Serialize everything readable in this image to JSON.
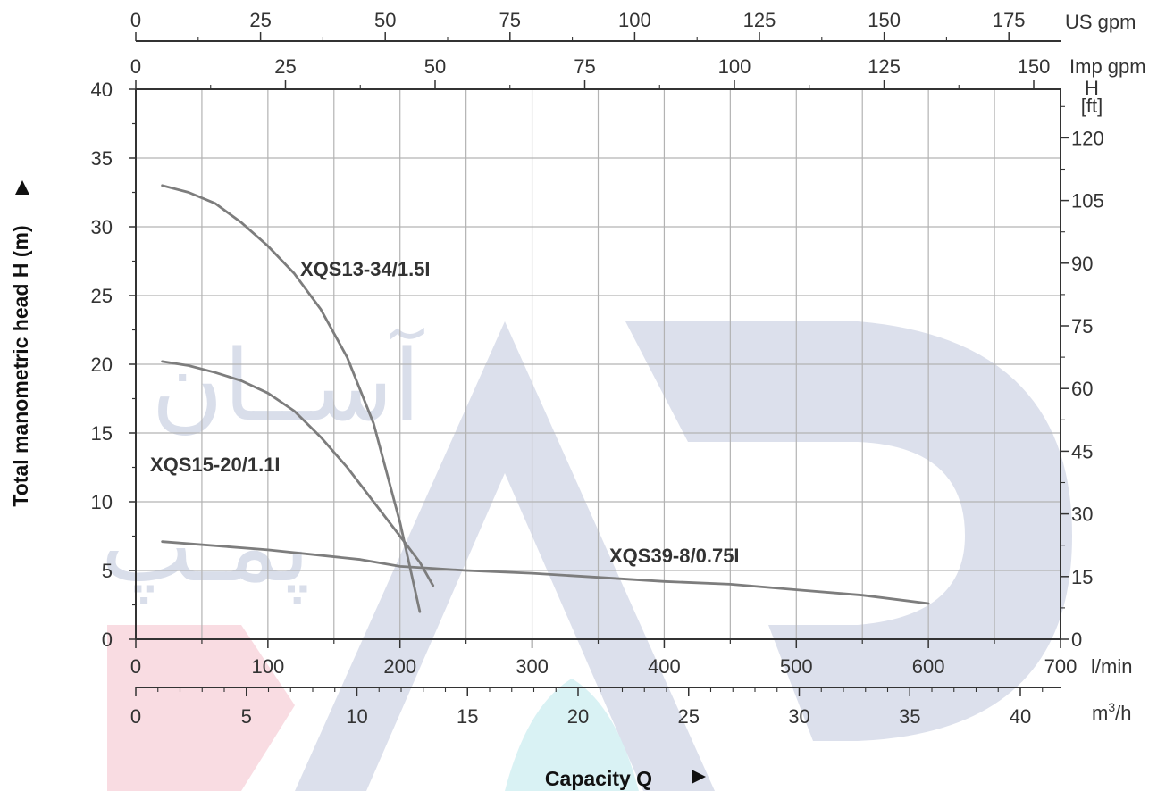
{
  "chart_data": {
    "type": "line",
    "title": "",
    "xlabel": "Capacity Q",
    "ylabel": "Total manometric head H (m)",
    "xlim": [
      0,
      700
    ],
    "ylim": [
      0,
      40
    ],
    "grid": true,
    "x_ticks": [
      "0",
      "100",
      "200",
      "300",
      "400",
      "500",
      "600",
      "700"
    ],
    "x_unit": "l/min",
    "y_ticks": [
      "0",
      "5",
      "10",
      "15",
      "20",
      "25",
      "30",
      "35",
      "40"
    ],
    "secondary_axes": {
      "top_us_gpm": {
        "unit": "US gpm",
        "ticks": [
          "0",
          "25",
          "50",
          "75",
          "100",
          "125",
          "150",
          "175"
        ]
      },
      "top_imp_gpm": {
        "unit": "Imp gpm",
        "ticks": [
          "0",
          "25",
          "50",
          "75",
          "100",
          "125",
          "150"
        ]
      },
      "bottom_m3h": {
        "unit": "m³/h",
        "unit_base": "m",
        "unit_sup": "3",
        "unit_rest": "/h",
        "ticks": [
          "0",
          "5",
          "10",
          "15",
          "20",
          "25",
          "30",
          "35",
          "40"
        ]
      },
      "right_ft": {
        "unit_line1": "H",
        "unit_line2": "[ft]",
        "ticks": [
          "0",
          "15",
          "30",
          "45",
          "60",
          "75",
          "90",
          "105",
          "120"
        ]
      }
    },
    "series": [
      {
        "name": "XQS13-34/1.5I",
        "x": [
          20,
          40,
          60,
          80,
          100,
          120,
          140,
          160,
          180,
          200,
          215
        ],
        "y": [
          33,
          32.5,
          31.7,
          30.3,
          28.6,
          26.6,
          24.0,
          20.5,
          15.7,
          8.5,
          2.0
        ]
      },
      {
        "name": "XQS15-20/1.1I",
        "x": [
          20,
          40,
          60,
          80,
          100,
          120,
          140,
          160,
          180,
          200,
          215,
          225
        ],
        "y": [
          20.2,
          19.9,
          19.4,
          18.8,
          17.9,
          16.6,
          14.7,
          12.5,
          10.0,
          7.5,
          5.6,
          3.9
        ]
      },
      {
        "name": "XQS39-8/0.75I",
        "x": [
          20,
          100,
          170,
          200,
          250,
          300,
          350,
          400,
          450,
          500,
          550,
          600
        ],
        "y": [
          7.1,
          6.5,
          5.8,
          5.3,
          5.0,
          4.8,
          4.5,
          4.2,
          4.0,
          3.6,
          3.2,
          2.6
        ]
      }
    ]
  }
}
